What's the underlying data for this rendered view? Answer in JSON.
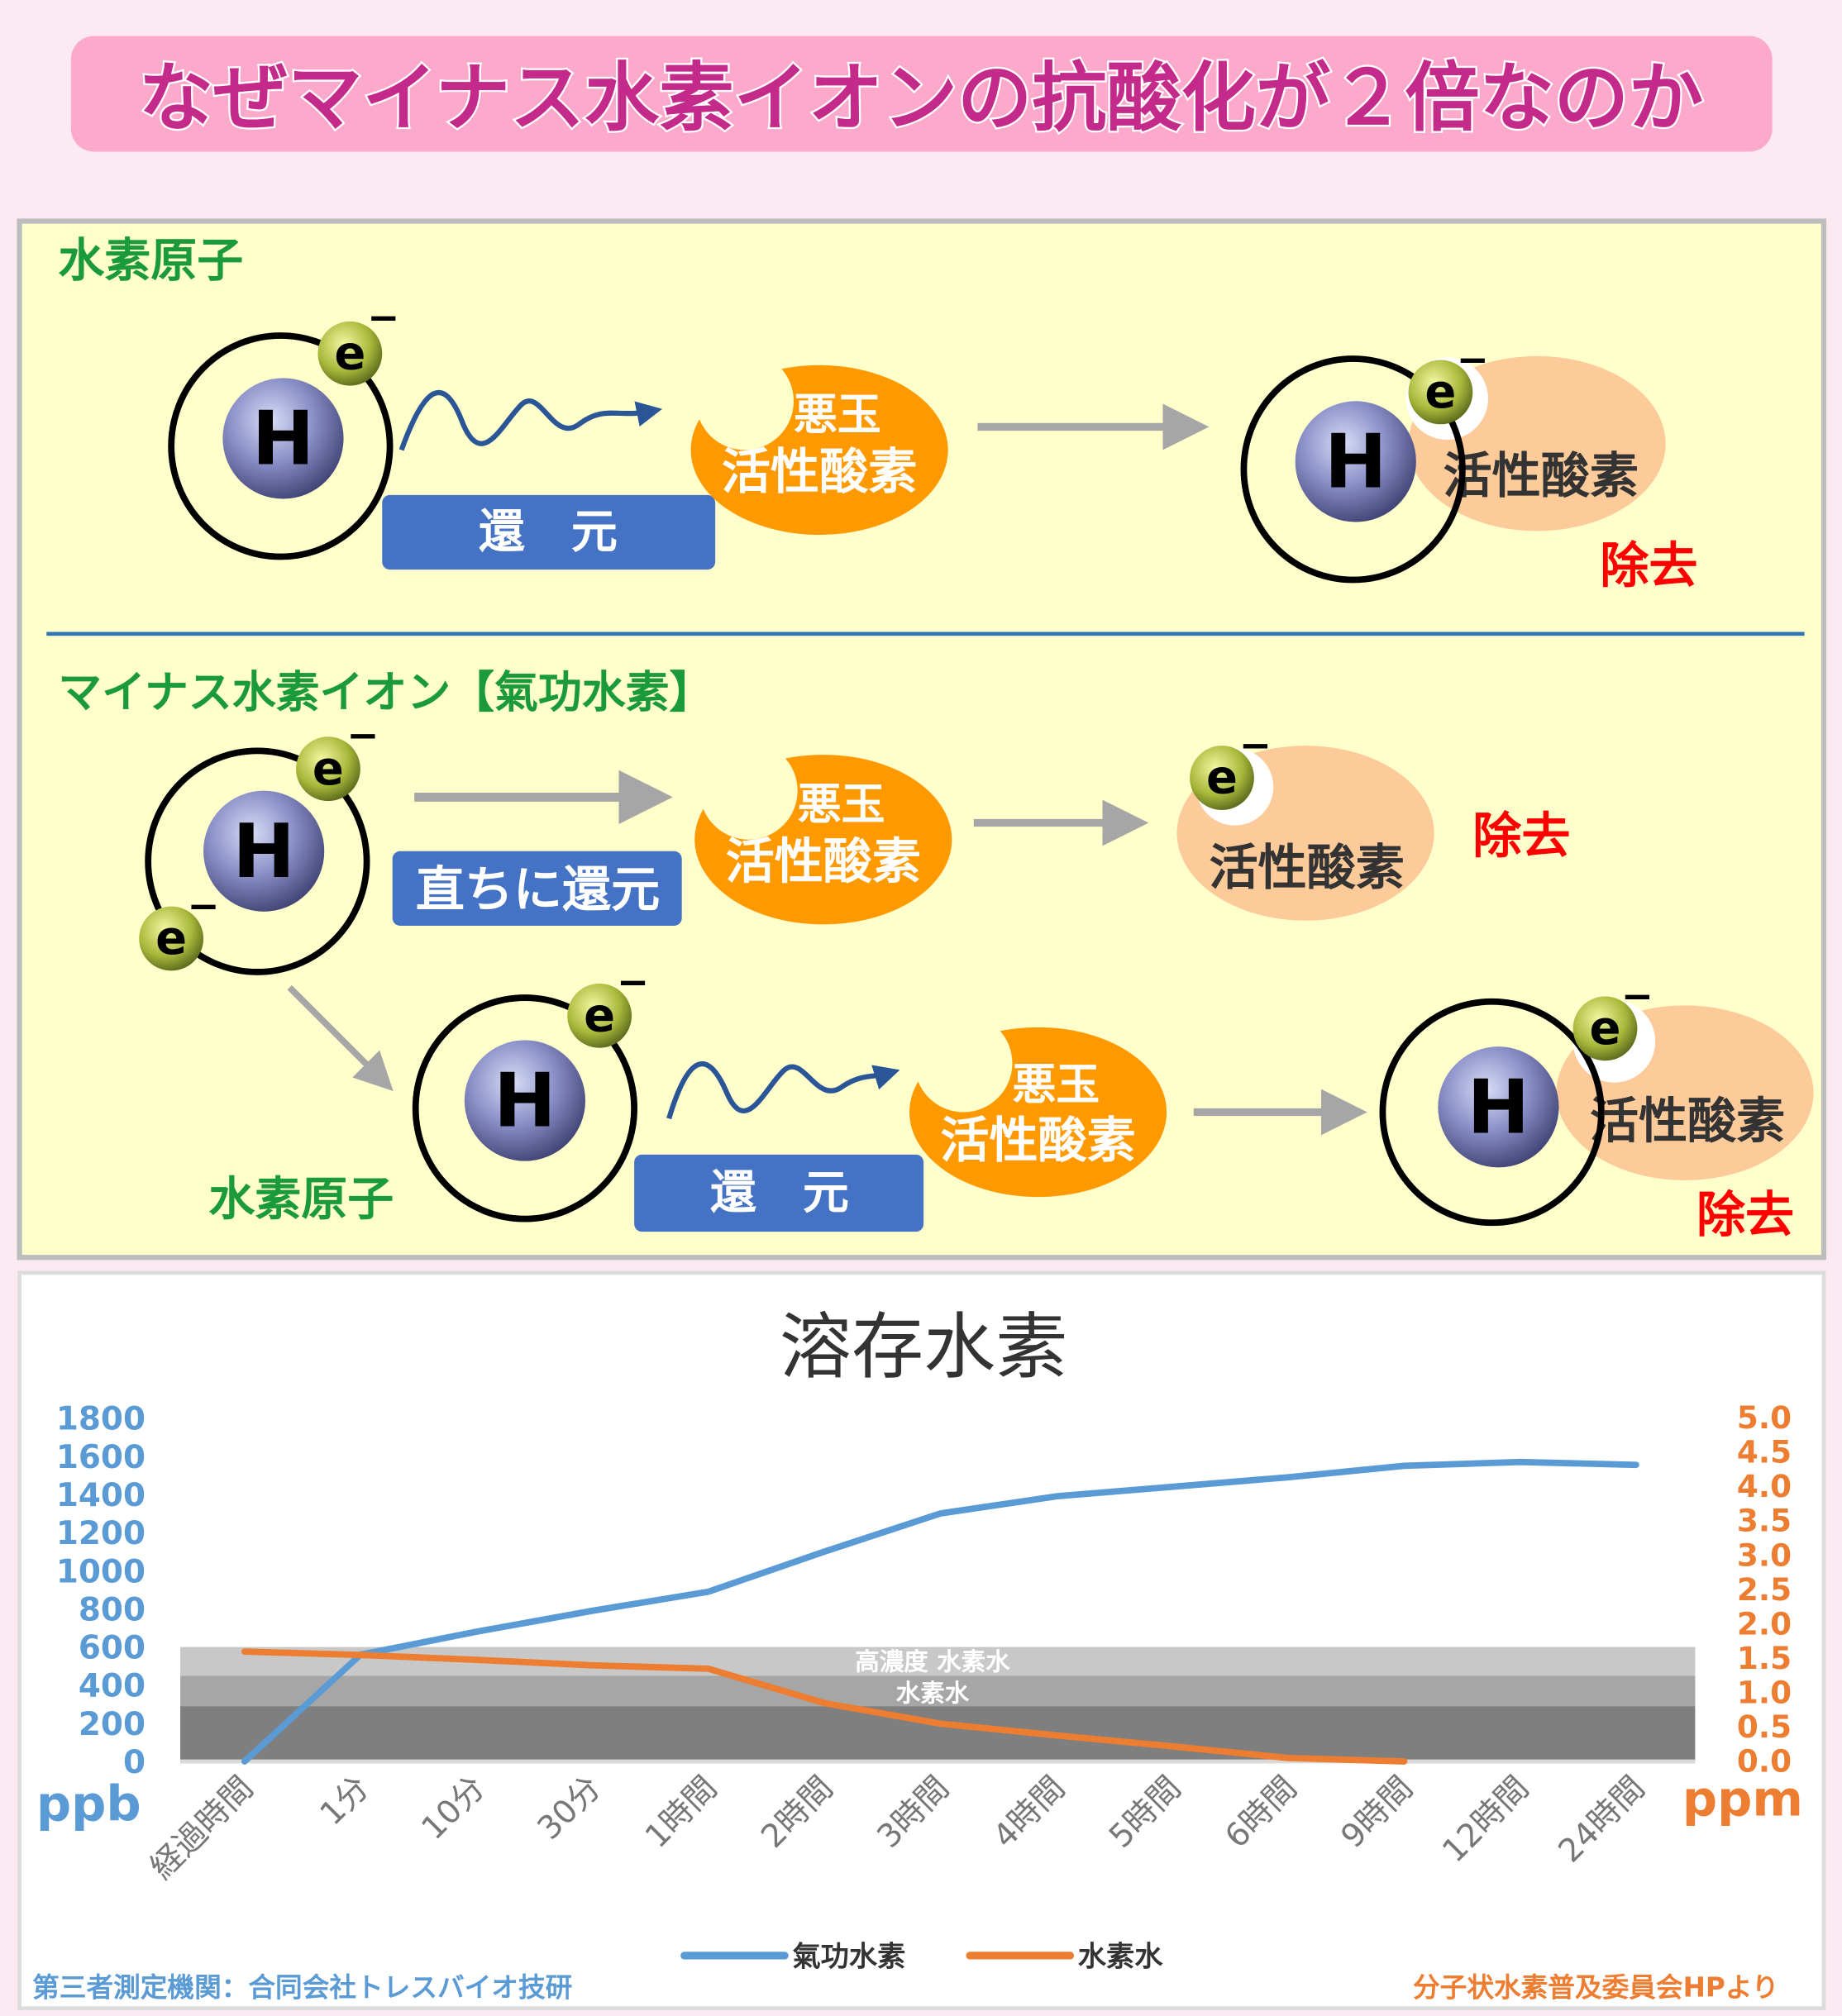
{
  "title": "なぜマイナス水素イオンの抗酸化が２倍なのか",
  "colors": {
    "banner": "#fda9cb",
    "title_text": "#c42a8a",
    "panel": "#ffffcc",
    "green": "#1a9a3a",
    "blue_box": "#4472c4",
    "orange": "#ff9900",
    "peach": "#fdca99",
    "red": "#ff0000",
    "series_blue": "#5b9bd5",
    "series_orange": "#ed7d31"
  },
  "section1": {
    "heading": "水素原子",
    "atom_label": "H",
    "electron_label": "e",
    "charge": "−",
    "action": "還　元",
    "radical_line1": "悪玉",
    "radical_line2": "活性酸素",
    "result_label": "活性酸素",
    "removed": "除去"
  },
  "section2": {
    "heading": "マイナス水素イオン【氣功水素】",
    "action_immediate": "直ちに還元",
    "radical_line1": "悪玉",
    "radical_line2": "活性酸素",
    "result_label": "活性酸素",
    "removed": "除去",
    "sub_atom_label": "水素原子",
    "action": "還　元",
    "result_label2": "活性酸素",
    "removed2": "除去"
  },
  "chart_data": {
    "type": "line",
    "title": "溶存水素",
    "categories": [
      "経過時間",
      "1分",
      "10分",
      "30分",
      "1時間",
      "2時間",
      "3時間",
      "4時間",
      "5時間",
      "6時間",
      "9時間",
      "12時間",
      "24時間"
    ],
    "series": [
      {
        "name": "氣功水素",
        "axis": "left",
        "color": "#5b9bd5",
        "values": [
          0,
          560,
          680,
          790,
          890,
          1100,
          1300,
          1390,
          1440,
          1490,
          1550,
          1570,
          1555
        ]
      },
      {
        "name": "水素水",
        "axis": "right",
        "color": "#ed7d31",
        "values": [
          1.6,
          1.55,
          1.48,
          1.4,
          1.35,
          0.85,
          0.55,
          0.38,
          0.22,
          0.05,
          0.0,
          null,
          null
        ]
      }
    ],
    "y_left": {
      "label": "ppb",
      "min": 0,
      "max": 1800,
      "ticks": [
        "1800",
        "1600",
        "1400",
        "1200",
        "1000",
        "800",
        "600",
        "400",
        "200",
        "0"
      ]
    },
    "y_right": {
      "label": "ppm",
      "min": 0,
      "max": 5.0,
      "ticks": [
        "5.0",
        "4.5",
        "4.0",
        "3.5",
        "3.0",
        "2.5",
        "2.0",
        "1.5",
        "1.0",
        "0.5",
        "0.0"
      ]
    },
    "bands": [
      {
        "from": 0,
        "to": 290,
        "color": "#7f7f7f",
        "label": ""
      },
      {
        "from": 290,
        "to": 450,
        "color": "#a6a6a6",
        "label": "水素水"
      },
      {
        "from": 450,
        "to": 600,
        "color": "#c8c8c8",
        "label": "高濃度 水素水"
      }
    ],
    "legend_position": "bottom",
    "grid": false
  },
  "footer": {
    "source_left": "第三者測定機関：合同会社トレスバイオ技研",
    "source_right": "分子状水素普及委員会HPより"
  }
}
